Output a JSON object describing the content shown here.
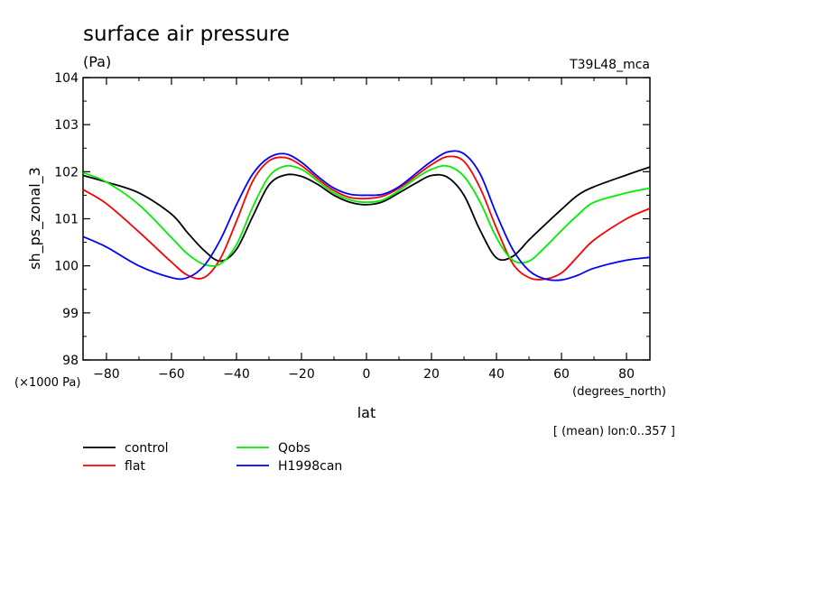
{
  "chart_data": {
    "type": "line",
    "title": "surface air pressure",
    "unit_label": "(Pa)",
    "run_label": "T39L48_mca",
    "xlabel": "lat",
    "xunit": "(degrees_north)",
    "ylabel": "sh_ps_zonal_3",
    "yscale_label": "(×1000 Pa)",
    "subtitle": "[ (mean) lon:0..357 ]",
    "xlim": [
      -87.2,
      87.2
    ],
    "ylim": [
      98,
      104
    ],
    "xticks": [
      -80,
      -60,
      -40,
      -20,
      0,
      20,
      40,
      60,
      80
    ],
    "yticks": [
      98,
      99,
      100,
      101,
      102,
      103,
      104
    ],
    "grid": false,
    "legend_position": "bottom-left",
    "x": [
      -87.2,
      -80,
      -70,
      -60,
      -55,
      -50,
      -45,
      -40,
      -35,
      -30,
      -25,
      -20,
      -15,
      -10,
      -5,
      0,
      5,
      10,
      15,
      20,
      25,
      30,
      35,
      40,
      45,
      50,
      55,
      60,
      65,
      70,
      80,
      87.2
    ],
    "series": [
      {
        "name": "control",
        "color": "#000000",
        "values": [
          101.92,
          101.78,
          101.55,
          101.1,
          100.7,
          100.33,
          100.1,
          100.35,
          101.05,
          101.72,
          101.93,
          101.9,
          101.73,
          101.5,
          101.35,
          101.3,
          101.36,
          101.55,
          101.75,
          101.92,
          101.88,
          101.5,
          100.75,
          100.17,
          100.2,
          100.55,
          100.88,
          101.2,
          101.5,
          101.68,
          101.93,
          102.1
        ]
      },
      {
        "name": "flat",
        "color": "#ff0000",
        "values": [
          101.62,
          101.32,
          100.72,
          100.08,
          99.8,
          99.75,
          100.15,
          100.95,
          101.8,
          102.23,
          102.3,
          102.13,
          101.85,
          101.6,
          101.45,
          101.43,
          101.48,
          101.65,
          101.9,
          102.15,
          102.32,
          102.22,
          101.65,
          100.8,
          100.05,
          99.75,
          99.72,
          99.85,
          100.2,
          100.55,
          101.0,
          101.22
        ]
      },
      {
        "name": "Qobs",
        "color": "#00ee00",
        "values": [
          101.98,
          101.78,
          101.3,
          100.6,
          100.25,
          100.03,
          100.04,
          100.45,
          101.25,
          101.9,
          102.12,
          102.05,
          101.8,
          101.55,
          101.4,
          101.35,
          101.4,
          101.6,
          101.85,
          102.05,
          102.12,
          101.9,
          101.35,
          100.6,
          100.12,
          100.1,
          100.4,
          100.75,
          101.08,
          101.35,
          101.55,
          101.65
        ]
      },
      {
        "name": "H1998can",
        "color": "#0000ff",
        "values": [
          100.62,
          100.4,
          100.0,
          99.75,
          99.75,
          100.0,
          100.55,
          101.3,
          101.95,
          102.3,
          102.38,
          102.2,
          101.9,
          101.65,
          101.52,
          101.5,
          101.52,
          101.68,
          101.95,
          102.22,
          102.42,
          102.38,
          101.95,
          101.1,
          100.35,
          99.9,
          99.72,
          99.7,
          99.8,
          99.95,
          100.12,
          100.18
        ]
      }
    ]
  }
}
